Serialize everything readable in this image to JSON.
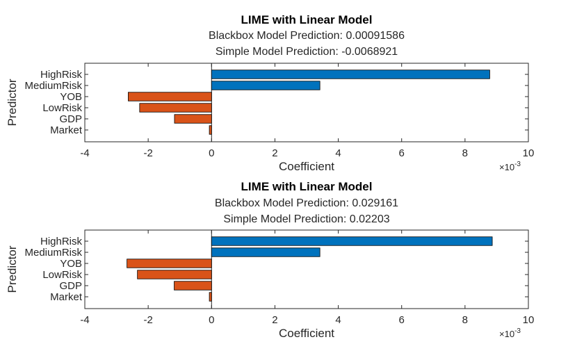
{
  "chart_data": [
    {
      "type": "bar",
      "orientation": "horizontal",
      "title": "LIME with Linear Model",
      "subtitle_lines": [
        "Blackbox Model Prediction: 0.00091586",
        "Simple Model Prediction: -0.0068921"
      ],
      "xlabel": "Coefficient",
      "ylabel": "Predictor",
      "x_exponent_base": "×10",
      "x_exponent_power": "-3",
      "xlim": [
        -4,
        10
      ],
      "xticks": [
        "-4",
        "-2",
        "0",
        "2",
        "4",
        "6",
        "8",
        "10"
      ],
      "categories": [
        "HighRisk",
        "MediumRisk",
        "YOB",
        "LowRisk",
        "GDP",
        "Market"
      ],
      "values": [
        8.78,
        3.42,
        -2.63,
        -2.27,
        -1.17,
        -0.07
      ],
      "value_scale": "x10^-3",
      "colors": {
        "positive": "#0072bd",
        "negative": "#d95319"
      },
      "grid": false
    },
    {
      "type": "bar",
      "orientation": "horizontal",
      "title": "LIME with Linear Model",
      "subtitle_lines": [
        "Blackbox Model Prediction: 0.029161",
        "Simple Model Prediction: 0.02203"
      ],
      "xlabel": "Coefficient",
      "ylabel": "Predictor",
      "x_exponent_base": "×10",
      "x_exponent_power": "-3",
      "xlim": [
        -4,
        10
      ],
      "xticks": [
        "-4",
        "-2",
        "0",
        "2",
        "4",
        "6",
        "8",
        "10"
      ],
      "categories": [
        "HighRisk",
        "MediumRisk",
        "YOB",
        "LowRisk",
        "GDP",
        "Market"
      ],
      "values": [
        8.86,
        3.42,
        -2.67,
        -2.34,
        -1.18,
        -0.07
      ],
      "value_scale": "x10^-3",
      "colors": {
        "positive": "#0072bd",
        "negative": "#d95319"
      },
      "grid": false
    }
  ]
}
